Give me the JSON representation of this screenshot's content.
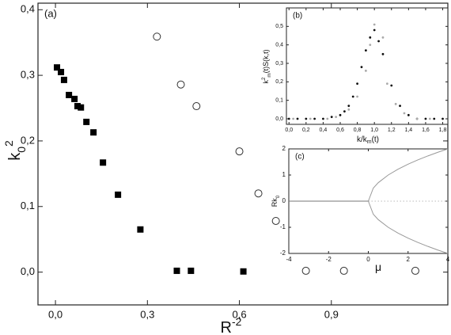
{
  "chart_data": [
    {
      "type": "scatter",
      "panel": "(a)",
      "xlabel": [
        {
          "text": "R"
        },
        {
          "text": "-2",
          "script": "sup"
        }
      ],
      "ylabel": [
        {
          "text": "k"
        },
        {
          "text": "0",
          "script": "sub"
        },
        {
          "text": "2",
          "script": "sup"
        }
      ],
      "xlim": [
        -0.057,
        1.28
      ],
      "ylim": [
        -0.05,
        0.41
      ],
      "xticks": [
        {
          "value": 0,
          "label": "0,0"
        },
        {
          "value": 0.3,
          "label": "0,3"
        },
        {
          "value": 0.6,
          "label": "0,6"
        },
        {
          "value": 0.9,
          "label": "0,9"
        }
      ],
      "yticks": [
        {
          "value": 0,
          "label": "0,0"
        },
        {
          "value": 0.1,
          "label": "0,1"
        },
        {
          "value": 0.2,
          "label": "0,2"
        },
        {
          "value": 0.3,
          "label": "0,3"
        },
        {
          "value": 0.4,
          "label": "0,4"
        }
      ],
      "series": [
        {
          "marker": "square",
          "color": "#000000",
          "x": [
            0.005,
            0.018,
            0.028,
            0.044,
            0.062,
            0.072,
            0.083,
            0.101,
            0.124,
            0.155,
            0.204,
            0.277,
            0.396,
            0.442,
            0.613
          ],
          "values": [
            0.312,
            0.305,
            0.293,
            0.27,
            0.264,
            0.253,
            0.251,
            0.229,
            0.213,
            0.167,
            0.118,
            0.065,
            0.002,
            0.002,
            0.001
          ]
        },
        {
          "marker": "circle",
          "color": "#333333",
          "x": [
            0.331,
            0.409,
            0.46,
            0.6,
            0.662,
            0.719,
            0.817,
            0.941,
            1.174
          ],
          "values": [
            0.359,
            0.286,
            0.253,
            0.184,
            0.12,
            0.078,
            0.002,
            0.002,
            0.002
          ]
        }
      ]
    },
    {
      "type": "scatter",
      "panel": "(b)",
      "xlabel": [
        {
          "text": "k/k"
        },
        {
          "text": "m",
          "script": "sub"
        },
        {
          "text": "(t)"
        }
      ],
      "ylabel": [
        {
          "text": "k"
        },
        {
          "text": "2",
          "script": "sup"
        },
        {
          "text": "m",
          "script": "sub"
        },
        {
          "text": "(t)S(k,t)"
        }
      ],
      "xlim": [
        -0.03,
        1.86
      ],
      "ylim": [
        -0.03,
        0.6
      ],
      "xticks": [
        {
          "value": 0,
          "label": "0,0"
        },
        {
          "value": 0.2,
          "label": "0,2"
        },
        {
          "value": 0.4,
          "label": "0,4"
        },
        {
          "value": 0.6,
          "label": "0,6"
        },
        {
          "value": 0.8,
          "label": "0,8"
        },
        {
          "value": 1,
          "label": "1,0"
        },
        {
          "value": 1.2,
          "label": "1,2"
        },
        {
          "value": 1.4,
          "label": "1,4"
        },
        {
          "value": 1.6,
          "label": "1,6"
        },
        {
          "value": 1.8,
          "label": "1,8"
        }
      ],
      "yticks": [
        {
          "value": 0,
          "label": "0,0"
        },
        {
          "value": 0.1,
          "label": "0,1"
        },
        {
          "value": 0.2,
          "label": "0,2"
        },
        {
          "value": 0.3,
          "label": "0,3"
        },
        {
          "value": 0.4,
          "label": "0,4"
        },
        {
          "value": 0.5,
          "label": "0,5"
        }
      ],
      "series": [
        {
          "marker": "dot",
          "color": "#111111",
          "x": [
            0,
            0.1,
            0.2,
            0.3,
            0.4,
            0.5,
            0.6,
            0.65,
            0.7,
            0.75,
            0.8,
            0.85,
            0.9,
            0.95,
            1,
            1.05,
            1.1,
            1.2,
            1.3,
            1.4,
            1.5,
            1.6,
            1.7,
            1.8
          ],
          "values": [
            0,
            0,
            0,
            0,
            0,
            0.01,
            0.02,
            0.04,
            0.07,
            0.12,
            0.19,
            0.28,
            0.37,
            0.44,
            0.48,
            0.42,
            0.35,
            0.18,
            0.07,
            0.02,
            0,
            0,
            0,
            0
          ]
        },
        {
          "marker": "dot",
          "color": "#aaaaaa",
          "x": [
            0.05,
            0.25,
            0.45,
            0.55,
            0.7,
            0.8,
            0.9,
            0.95,
            1,
            1.1,
            1.15,
            1.25,
            1.35,
            1.5,
            1.65
          ],
          "values": [
            0,
            0,
            0,
            0.01,
            0.05,
            0.12,
            0.26,
            0.4,
            0.51,
            0.44,
            0.19,
            0.08,
            0.03,
            0,
            0
          ]
        }
      ]
    },
    {
      "type": "line",
      "panel": "(c)",
      "xlabel": [
        {
          "text": "μ"
        }
      ],
      "ylabel": [
        {
          "text": "Rk"
        },
        {
          "text": "0",
          "script": "sub"
        }
      ],
      "xlim": [
        -4,
        4
      ],
      "ylim": [
        -2,
        2
      ],
      "xticks": [
        -4,
        -2,
        0,
        2,
        4
      ],
      "yticks": [
        -2,
        -1,
        0,
        1,
        2
      ],
      "series": [
        {
          "color": "#777777",
          "dashed": false,
          "x": [
            -4,
            0
          ],
          "values": [
            0,
            0
          ]
        },
        {
          "color": "#bbbbbb",
          "dashed": true,
          "x": [
            0,
            4
          ],
          "values": [
            0,
            0
          ]
        },
        {
          "color": "#999999",
          "dashed": false,
          "x": [
            0,
            0.25,
            0.5,
            1,
            1.5,
            2,
            2.5,
            3,
            3.5,
            4
          ],
          "values": [
            0,
            0.5,
            0.707,
            1,
            1.225,
            1.414,
            1.581,
            1.732,
            1.871,
            2
          ]
        },
        {
          "color": "#999999",
          "dashed": false,
          "x": [
            0,
            0.25,
            0.5,
            1,
            1.5,
            2,
            2.5,
            3,
            3.5,
            4
          ],
          "values": [
            0,
            -0.5,
            -0.707,
            -1,
            -1.225,
            -1.414,
            -1.581,
            -1.732,
            -1.871,
            -2
          ]
        }
      ]
    }
  ]
}
